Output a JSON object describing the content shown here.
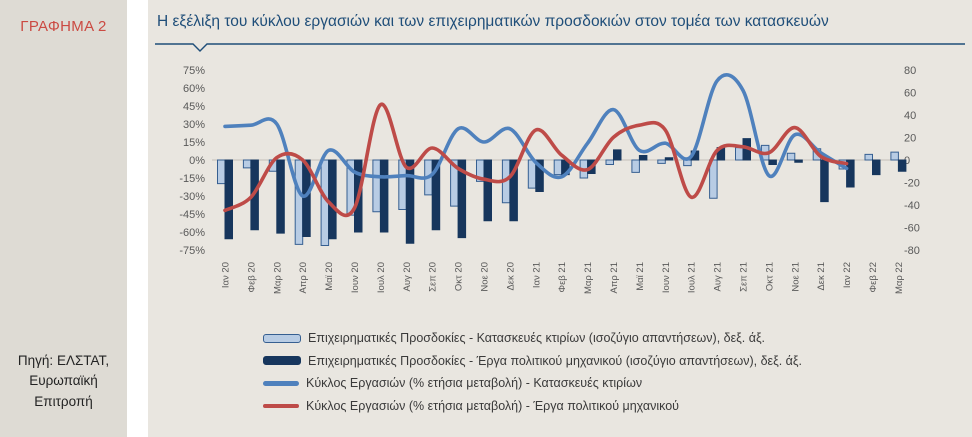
{
  "sidebar": {
    "figure_label": "ΓΡΑΦΗΜΑ 2",
    "source_lines": [
      "Πηγή: ΕΛΣΤΑΤ,",
      "Ευρωπαϊκή",
      "Επιτροπή"
    ]
  },
  "header": {
    "title": "Η εξέλιξη του κύκλου εργασιών και των επιχειρηματικών προσδοκιών στον τομέα των κατασκευών"
  },
  "chart_data": {
    "type": "combo",
    "grid": "zero-line-only",
    "legend_position": "bottom",
    "categories": [
      "Ιαν 20",
      "Φεβ 20",
      "Μαρ 20",
      "Απρ 20",
      "Μαϊ 20",
      "Ιουν 20",
      "Ιουλ 20",
      "Αυγ 20",
      "Σεπ 20",
      "Οκτ 20",
      "Νοε 20",
      "Δεκ 20",
      "Ιαν 21",
      "Φεβ 21",
      "Μαρ 21",
      "Απρ 21",
      "Μαϊ 21",
      "Ιουν 21",
      "Ιουλ 21",
      "Αυγ 21",
      "Σεπ 21",
      "Οκτ 21",
      "Νοε 21",
      "Δεκ 21",
      "Ιαν 22",
      "Φεβ 22",
      "Μαρ 22"
    ],
    "left_axis": {
      "ticks": [
        "75%",
        "60%",
        "45%",
        "30%",
        "15%",
        "0%",
        "-15%",
        "-30%",
        "-45%",
        "-60%",
        "-75%"
      ],
      "max": 75,
      "min": -75,
      "step": 15,
      "unit": "%"
    },
    "right_axis": {
      "ticks": [
        "80",
        "60",
        "40",
        "20",
        "0",
        "-20",
        "-40",
        "-60",
        "-80"
      ],
      "max": 80,
      "min": -80,
      "step": 20
    },
    "series": [
      {
        "name": "Επιχειρηματικές Προσδοκίες - Κατασκευές κτιρίων (ισοζύγιο απαντήσεων), δεξ. άξ.",
        "type": "bar",
        "axis": "right",
        "color": "#b8cce4",
        "border": "#365f91",
        "values": [
          -21,
          -7,
          -10,
          -75,
          -76,
          -49,
          -46,
          -44,
          -31,
          -41,
          -19,
          -38,
          -25,
          -13,
          -16,
          -4,
          -11,
          -3,
          -5,
          -34,
          11,
          13,
          6,
          10,
          -8,
          5,
          7
        ]
      },
      {
        "name": "Επιχειρηματικές Προσδοκίες - Έργα πολιτικού μηχανικού (ισοζύγιο απαντήσεων), δεξ. άξ.",
        "type": "bar",
        "axis": "right",
        "color": "#17365d",
        "border": "#17365d",
        "values": [
          -70,
          -62,
          -65,
          -68,
          -70,
          -64,
          -64,
          -74,
          -62,
          -69,
          -54,
          -54,
          -28,
          -13,
          -12,
          9,
          4,
          2,
          8,
          11,
          19,
          -4,
          -2,
          -37,
          -24,
          -13,
          -10
        ]
      },
      {
        "name": "Κύκλος Εργασιών (% ετήσια μεταβολή) - Κατασκευές κτιρίων",
        "type": "line",
        "axis": "left",
        "color": "#4f81bd",
        "values": [
          28,
          29,
          30,
          -30,
          8,
          -10,
          -14,
          -13,
          -12,
          26,
          15,
          26,
          -2,
          -14,
          14,
          42,
          8,
          14,
          3,
          66,
          58,
          -13,
          21,
          6,
          -7,
          null,
          null
        ]
      },
      {
        "name": "Κύκλος Εργασιών (% ετήσια μεταβολή) - Έργα πολιτικού μηχανικού",
        "type": "line",
        "axis": "left",
        "color": "#be4b48",
        "values": [
          -42,
          -31,
          2,
          0,
          -35,
          -40,
          46,
          -6,
          10,
          -7,
          -16,
          -14,
          25,
          4,
          -8,
          19,
          29,
          25,
          -31,
          8,
          11,
          6,
          27,
          3,
          -3,
          null,
          null
        ]
      }
    ]
  }
}
